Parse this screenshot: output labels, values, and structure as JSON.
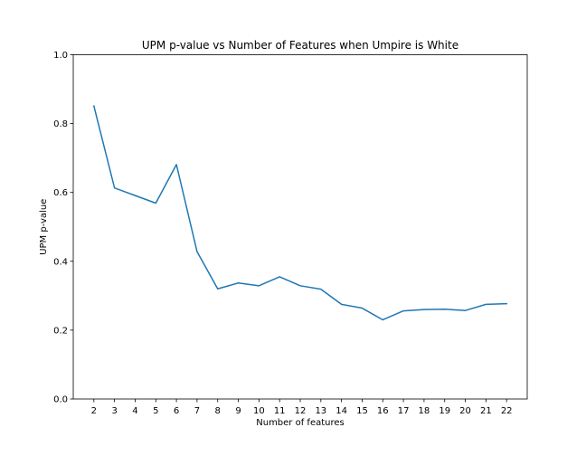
{
  "chart_data": {
    "type": "line",
    "title": "UPM p-value vs Number of Features when Umpire is White",
    "xlabel": "Number of features",
    "ylabel": "UPM p-value",
    "x": [
      2,
      3,
      4,
      5,
      6,
      7,
      8,
      9,
      10,
      11,
      12,
      13,
      14,
      15,
      16,
      17,
      18,
      19,
      20,
      21,
      22
    ],
    "series": [
      {
        "values": [
          0.851,
          0.613,
          0.591,
          0.569,
          0.681,
          0.428,
          0.32,
          0.337,
          0.329,
          0.355,
          0.329,
          0.319,
          0.275,
          0.264,
          0.23,
          0.256,
          0.26,
          0.261,
          0.257,
          0.275,
          0.277
        ],
        "color": "#1f77b4"
      }
    ],
    "xlim": [
      1,
      23
    ],
    "ylim": [
      0.0,
      1.0
    ],
    "yticks": [
      0.0,
      0.2,
      0.4,
      0.6,
      0.8,
      1.0
    ],
    "ytick_labels": [
      "0.0",
      "0.2",
      "0.4",
      "0.6",
      "0.8",
      "1.0"
    ],
    "xticks": [
      2,
      3,
      4,
      5,
      6,
      7,
      8,
      9,
      10,
      11,
      12,
      13,
      14,
      15,
      16,
      17,
      18,
      19,
      20,
      21,
      22
    ],
    "xtick_labels": [
      "2",
      "3",
      "4",
      "5",
      "6",
      "7",
      "8",
      "9",
      "10",
      "11",
      "12",
      "13",
      "14",
      "15",
      "16",
      "17",
      "18",
      "19",
      "20",
      "21",
      "22"
    ],
    "grid": false,
    "legend": "none"
  }
}
